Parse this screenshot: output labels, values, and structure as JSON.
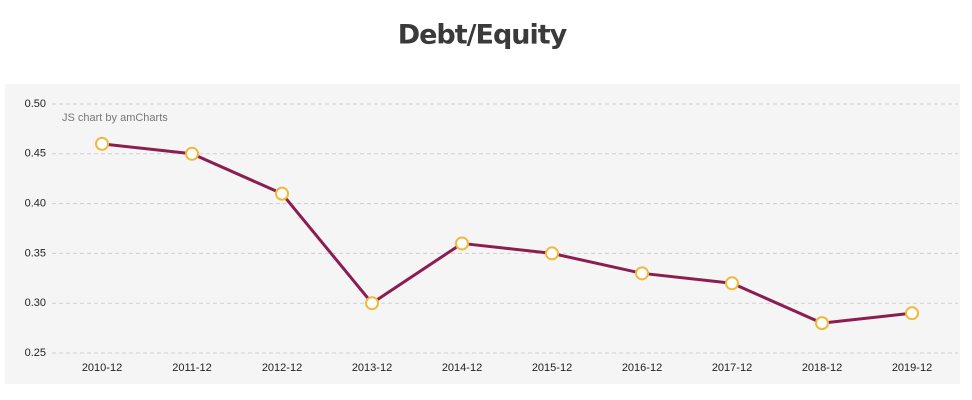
{
  "chart_data": {
    "type": "line",
    "title": "Debt/Equity",
    "annotation": "JS chart by amCharts",
    "categories": [
      "2010-12",
      "2011-12",
      "2012-12",
      "2013-12",
      "2014-12",
      "2015-12",
      "2016-12",
      "2017-12",
      "2018-12",
      "2019-12"
    ],
    "series": [
      {
        "name": "Debt/Equity",
        "color": "#8b1d52",
        "marker_color": "#f0b93a",
        "values": [
          0.46,
          0.45,
          0.41,
          0.3,
          0.36,
          0.35,
          0.33,
          0.32,
          0.28,
          0.29
        ]
      }
    ],
    "ylim": [
      0.25,
      0.5
    ],
    "yticks": [
      0.25,
      {
        "value": 0.3,
        "label": "0.30"
      },
      0.35,
      {
        "value": 0.4,
        "label": "0.40"
      },
      0.45,
      {
        "value": 0.5,
        "label": "0.50"
      }
    ],
    "grid": true
  }
}
